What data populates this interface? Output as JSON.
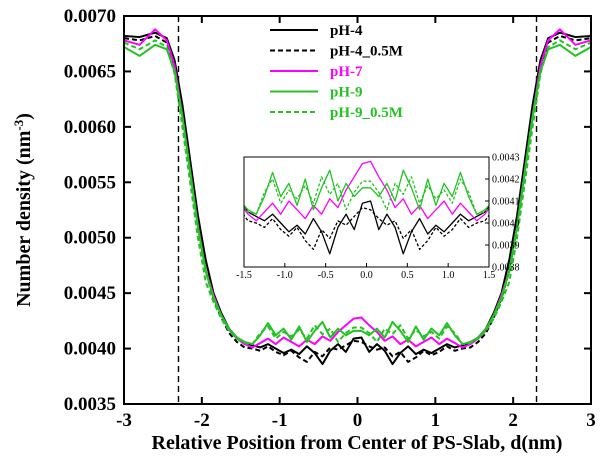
{
  "chart_data": {
    "type": "line",
    "xlabel": "Relative Position from Center of PS-Slab, d(nm)",
    "ylabel": "Number density (nm",
    "ylabel_sup": "-3",
    "ylabel_close": ")",
    "xlim": [
      -3,
      3
    ],
    "ylim": [
      0.0035,
      0.007
    ],
    "xticks": [
      -3,
      -2,
      -1,
      0,
      1,
      2,
      3
    ],
    "xtick_labels": [
      "-3",
      "-2",
      "-1",
      "0",
      "1",
      "2",
      "3"
    ],
    "yticks": [
      0.0035,
      0.004,
      0.0045,
      0.005,
      0.0055,
      0.006,
      0.0065,
      0.007
    ],
    "ytick_labels": [
      "0.0035",
      "0.0040",
      "0.0045",
      "0.0050",
      "0.0055",
      "0.0060",
      "0.0065",
      "0.0070"
    ],
    "vlines": [
      -2.3,
      2.3
    ],
    "legend_position": "top-center",
    "series": [
      {
        "name": "pH-4",
        "color": "#000000",
        "dash": "solid",
        "x": [
          -3.0,
          -2.8,
          -2.6,
          -2.45,
          -2.35,
          -2.25,
          -2.15,
          -2.05,
          -1.95,
          -1.85,
          -1.75,
          -1.65,
          -1.55,
          -1.45,
          -1.35,
          -1.25,
          -1.15,
          -1.05,
          -0.95,
          -0.85,
          -0.75,
          -0.65,
          -0.55,
          -0.45,
          -0.35,
          -0.25,
          -0.15,
          -0.05,
          0.05,
          0.15,
          0.25,
          0.35,
          0.45,
          0.55,
          0.65,
          0.75,
          0.85,
          0.95,
          1.05,
          1.15,
          1.25,
          1.35,
          1.45,
          1.55,
          1.65,
          1.75,
          1.85,
          1.95,
          2.05,
          2.15,
          2.25,
          2.35,
          2.45,
          2.6,
          2.8,
          3.0
        ],
        "y": [
          0.00682,
          0.00681,
          0.00685,
          0.0068,
          0.0066,
          0.0062,
          0.0057,
          0.0052,
          0.0048,
          0.0045,
          0.00432,
          0.00418,
          0.0041,
          0.00405,
          0.00403,
          0.00401,
          0.00404,
          0.004,
          0.00396,
          0.00399,
          0.00395,
          0.00402,
          0.00396,
          0.00386,
          0.00398,
          0.00404,
          0.00397,
          0.00409,
          0.0041,
          0.00397,
          0.00404,
          0.00398,
          0.00386,
          0.00396,
          0.00402,
          0.00395,
          0.00399,
          0.00396,
          0.004,
          0.00404,
          0.00401,
          0.00403,
          0.00405,
          0.0041,
          0.00418,
          0.00432,
          0.0045,
          0.0048,
          0.0052,
          0.0057,
          0.0062,
          0.0066,
          0.0068,
          0.00685,
          0.00681,
          0.00682
        ]
      },
      {
        "name": "pH-4_0.5M",
        "color": "#000000",
        "dash": "dashed",
        "x": [
          -3.0,
          -2.8,
          -2.6,
          -2.45,
          -2.35,
          -2.25,
          -2.15,
          -2.05,
          -1.95,
          -1.85,
          -1.75,
          -1.65,
          -1.55,
          -1.45,
          -1.35,
          -1.25,
          -1.15,
          -1.05,
          -0.95,
          -0.85,
          -0.75,
          -0.65,
          -0.55,
          -0.45,
          -0.35,
          -0.25,
          -0.15,
          -0.05,
          0.05,
          0.15,
          0.25,
          0.35,
          0.45,
          0.55,
          0.65,
          0.75,
          0.85,
          0.95,
          1.05,
          1.15,
          1.25,
          1.35,
          1.45,
          1.55,
          1.65,
          1.75,
          1.85,
          1.95,
          2.05,
          2.15,
          2.25,
          2.35,
          2.45,
          2.6,
          2.8,
          3.0
        ],
        "y": [
          0.0068,
          0.00678,
          0.00682,
          0.00676,
          0.00652,
          0.0061,
          0.0056,
          0.0051,
          0.0047,
          0.00445,
          0.00428,
          0.00414,
          0.00406,
          0.00401,
          0.004,
          0.00398,
          0.00402,
          0.00397,
          0.00394,
          0.00398,
          0.00392,
          0.00388,
          0.00397,
          0.00393,
          0.00401,
          0.00399,
          0.00403,
          0.00407,
          0.00406,
          0.00402,
          0.00399,
          0.00401,
          0.00393,
          0.00397,
          0.00388,
          0.00392,
          0.00398,
          0.00394,
          0.00397,
          0.00402,
          0.00398,
          0.004,
          0.00401,
          0.00406,
          0.00414,
          0.00428,
          0.00445,
          0.0047,
          0.0051,
          0.0056,
          0.0061,
          0.00652,
          0.00676,
          0.00682,
          0.00678,
          0.0068
        ]
      },
      {
        "name": "pH-7",
        "color": "#ff00ff",
        "dash": "solid",
        "x": [
          -3.0,
          -2.8,
          -2.6,
          -2.45,
          -2.35,
          -2.25,
          -2.15,
          -2.05,
          -1.95,
          -1.85,
          -1.75,
          -1.65,
          -1.55,
          -1.45,
          -1.35,
          -1.25,
          -1.15,
          -1.05,
          -0.95,
          -0.85,
          -0.75,
          -0.65,
          -0.55,
          -0.45,
          -0.35,
          -0.25,
          -0.15,
          -0.05,
          0.05,
          0.15,
          0.25,
          0.35,
          0.45,
          0.55,
          0.65,
          0.75,
          0.85,
          0.95,
          1.05,
          1.15,
          1.25,
          1.35,
          1.45,
          1.55,
          1.65,
          1.75,
          1.85,
          1.95,
          2.05,
          2.15,
          2.25,
          2.35,
          2.45,
          2.6,
          2.8,
          3.0
        ],
        "y": [
          0.00678,
          0.00674,
          0.00688,
          0.00678,
          0.00655,
          0.0061,
          0.0056,
          0.0051,
          0.0047,
          0.00448,
          0.0043,
          0.00417,
          0.00409,
          0.00404,
          0.00401,
          0.00405,
          0.00409,
          0.00404,
          0.0041,
          0.00406,
          0.00402,
          0.00408,
          0.00404,
          0.00411,
          0.00407,
          0.00415,
          0.00421,
          0.00427,
          0.00428,
          0.00421,
          0.00415,
          0.00407,
          0.00411,
          0.00404,
          0.00408,
          0.00402,
          0.00406,
          0.0041,
          0.00404,
          0.00409,
          0.00405,
          0.00401,
          0.00404,
          0.00409,
          0.00417,
          0.0043,
          0.00448,
          0.0047,
          0.0051,
          0.0056,
          0.0061,
          0.00655,
          0.00678,
          0.00688,
          0.00674,
          0.00678
        ]
      },
      {
        "name": "pH-9",
        "color": "#22c322",
        "dash": "solid",
        "x": [
          -3.0,
          -2.8,
          -2.6,
          -2.45,
          -2.35,
          -2.25,
          -2.15,
          -2.05,
          -1.95,
          -1.85,
          -1.75,
          -1.65,
          -1.55,
          -1.45,
          -1.35,
          -1.25,
          -1.15,
          -1.05,
          -0.95,
          -0.85,
          -0.75,
          -0.65,
          -0.55,
          -0.45,
          -0.35,
          -0.25,
          -0.15,
          -0.05,
          0.05,
          0.15,
          0.25,
          0.35,
          0.45,
          0.55,
          0.65,
          0.75,
          0.85,
          0.95,
          1.05,
          1.15,
          1.25,
          1.35,
          1.45,
          1.55,
          1.65,
          1.75,
          1.85,
          1.95,
          2.05,
          2.15,
          2.25,
          2.35,
          2.45,
          2.6,
          2.8,
          3.0
        ],
        "y": [
          0.00672,
          0.00664,
          0.00674,
          0.0067,
          0.0065,
          0.0061,
          0.0056,
          0.0051,
          0.0047,
          0.00446,
          0.0043,
          0.00418,
          0.0041,
          0.00406,
          0.00404,
          0.00412,
          0.00423,
          0.00412,
          0.00418,
          0.00408,
          0.0042,
          0.00406,
          0.00416,
          0.00424,
          0.0041,
          0.00418,
          0.00412,
          0.00416,
          0.00416,
          0.00412,
          0.00418,
          0.0041,
          0.00424,
          0.00416,
          0.00406,
          0.0042,
          0.00408,
          0.00418,
          0.00412,
          0.00423,
          0.00412,
          0.00404,
          0.00406,
          0.0041,
          0.00418,
          0.0043,
          0.00446,
          0.0047,
          0.0051,
          0.0056,
          0.0061,
          0.0065,
          0.0067,
          0.00674,
          0.00664,
          0.00672
        ]
      },
      {
        "name": "pH-9_0.5M",
        "color": "#22c322",
        "dash": "dashed",
        "x": [
          -3.0,
          -2.8,
          -2.6,
          -2.45,
          -2.35,
          -2.25,
          -2.15,
          -2.05,
          -1.95,
          -1.85,
          -1.75,
          -1.65,
          -1.55,
          -1.45,
          -1.35,
          -1.25,
          -1.15,
          -1.05,
          -0.95,
          -0.85,
          -0.75,
          -0.65,
          -0.55,
          -0.45,
          -0.35,
          -0.25,
          -0.15,
          -0.05,
          0.05,
          0.15,
          0.25,
          0.35,
          0.45,
          0.55,
          0.65,
          0.75,
          0.85,
          0.95,
          1.05,
          1.15,
          1.25,
          1.35,
          1.45,
          1.55,
          1.65,
          1.75,
          1.85,
          1.95,
          2.05,
          2.15,
          2.25,
          2.35,
          2.45,
          2.6,
          2.8,
          3.0
        ],
        "y": [
          0.00676,
          0.0067,
          0.00678,
          0.00672,
          0.00648,
          0.006,
          0.0055,
          0.005,
          0.0046,
          0.00442,
          0.00427,
          0.00416,
          0.00409,
          0.00405,
          0.00404,
          0.00414,
          0.0042,
          0.00409,
          0.00415,
          0.00411,
          0.00417,
          0.00409,
          0.00421,
          0.00413,
          0.00418,
          0.00406,
          0.00414,
          0.00419,
          0.00419,
          0.00414,
          0.00406,
          0.00418,
          0.00413,
          0.00421,
          0.00409,
          0.00417,
          0.00411,
          0.00415,
          0.00409,
          0.0042,
          0.00414,
          0.00404,
          0.00405,
          0.00409,
          0.00416,
          0.00427,
          0.00442,
          0.0046,
          0.005,
          0.0055,
          0.006,
          0.00648,
          0.00672,
          0.00678,
          0.0067,
          0.00676
        ]
      }
    ],
    "inset": {
      "xlim": [
        -1.5,
        1.5
      ],
      "ylim": [
        0.0038,
        0.0043
      ],
      "xticks": [
        -1.5,
        -1.0,
        -0.5,
        0.0,
        0.5,
        1.0,
        1.5
      ],
      "xtick_labels": [
        "-1.5",
        "-1.0",
        "-0.5",
        "0.0",
        "0.5",
        "1.0",
        "1.5"
      ],
      "yticks": [
        0.0038,
        0.0039,
        0.004,
        0.0041,
        0.0042,
        0.0043
      ],
      "ytick_labels": [
        "0.0038",
        "0.0039",
        "0.0040",
        "0.0041",
        "0.0042",
        "0.0043"
      ]
    }
  }
}
